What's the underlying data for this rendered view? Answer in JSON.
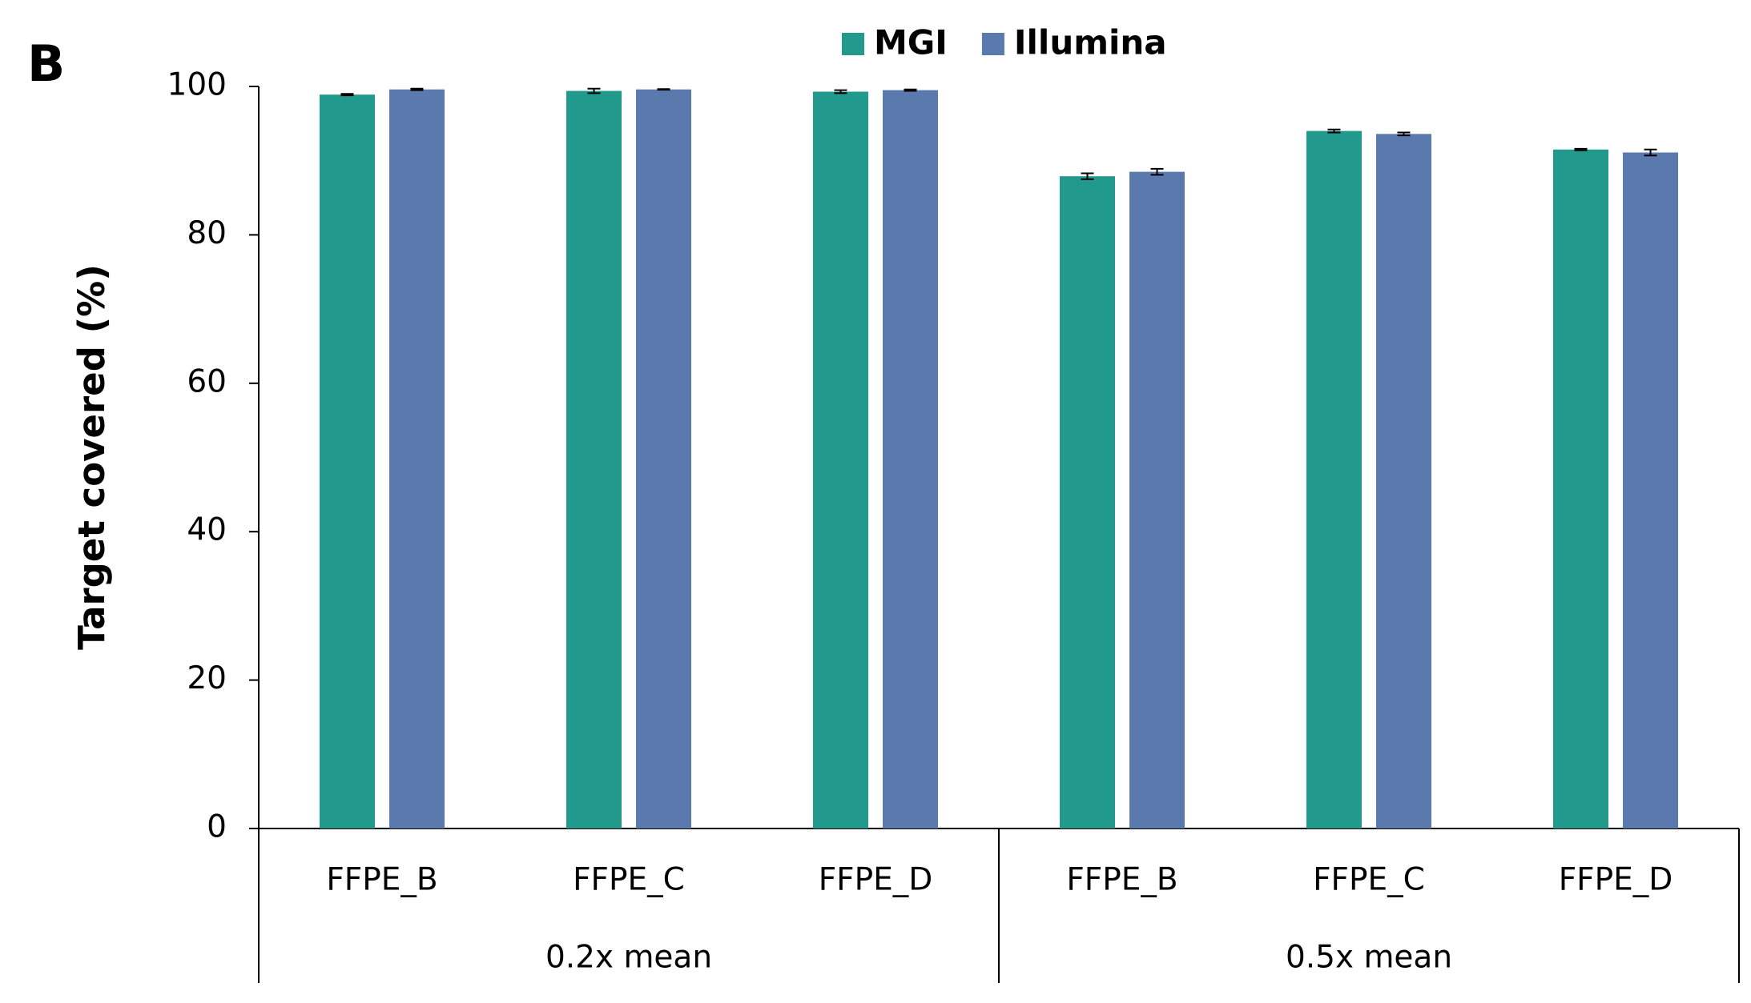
{
  "chart_data": {
    "type": "bar",
    "panel_label": "B",
    "y_label": "Target covered (%)",
    "categories": [
      "FFPE_B",
      "FFPE_C",
      "FFPE_D",
      "FFPE_B",
      "FFPE_C",
      "FFPE_D"
    ],
    "groups": [
      "0.2x mean",
      "0.5x mean"
    ],
    "series": [
      {
        "name": "MGI",
        "color": "#21998c",
        "values": [
          98.9,
          99.4,
          99.3,
          87.9,
          94.0,
          91.5
        ],
        "errors": [
          0.1,
          0.3,
          0.2,
          0.4,
          0.2,
          0.1
        ]
      },
      {
        "name": "Illumina",
        "color": "#5a7aad",
        "values": [
          99.6,
          99.6,
          99.5,
          88.5,
          93.6,
          91.1
        ],
        "errors": [
          0.1,
          0.05,
          0.1,
          0.4,
          0.2,
          0.4
        ]
      }
    ],
    "ylim": [
      0,
      100
    ],
    "yticks": [
      0,
      20,
      40,
      60,
      80,
      100
    ],
    "grid": false,
    "legend": "top"
  }
}
